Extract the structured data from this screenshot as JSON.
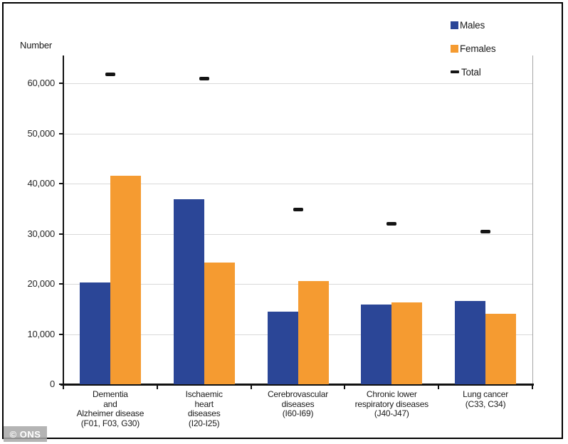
{
  "watermark": {
    "text": "© ONS"
  },
  "legend": {
    "items": [
      {
        "label": "Males",
        "type": "square",
        "color": "#2B4697"
      },
      {
        "label": "Females",
        "type": "square",
        "color": "#F59B31"
      },
      {
        "label": "Total",
        "type": "dash",
        "color": "#141414"
      }
    ]
  },
  "chart_data": {
    "type": "bar",
    "title": "",
    "y_axis_title": "Number",
    "xlabel": "",
    "ylabel": "Number",
    "ylim": [
      0,
      65500
    ],
    "grid": true,
    "legend_position": "top-right",
    "categories": [
      "Dementia and Alzheimer disease (F01, F03, G30)",
      "Ischaemic heart diseases (I20-I25)",
      "Cerebrovascular diseases (I60-I69)",
      "Chronic lower respiratory diseases (J40-J47)",
      "Lung cancer (C33, C34)"
    ],
    "category_label_lines": [
      [
        "Dementia",
        "and",
        "Alzheimer disease",
        "(F01, F03, G30)"
      ],
      [
        "Ischaemic",
        "heart",
        "diseases",
        "(I20-I25)"
      ],
      [
        "Cerebrovascular",
        "diseases",
        "(I60-I69)"
      ],
      [
        "Chronic lower",
        "respiratory diseases",
        "(J40-J47)"
      ],
      [
        "Lung cancer",
        "(C33, C34)"
      ]
    ],
    "series": [
      {
        "name": "Males",
        "style": "bar",
        "color": "#2B4697",
        "values": [
          20300,
          36900,
          14500,
          15900,
          16600
        ]
      },
      {
        "name": "Females",
        "style": "bar",
        "color": "#F59B31",
        "values": [
          41600,
          24200,
          20500,
          16300,
          14000
        ]
      },
      {
        "name": "Total",
        "style": "dash",
        "color": "#141414",
        "values": [
          61800,
          61000,
          34900,
          32100,
          30500
        ]
      }
    ],
    "y_axis": {
      "ticks": [
        {
          "value": 0,
          "label": "0"
        },
        {
          "value": 10000,
          "label": "10,000"
        },
        {
          "value": 20000,
          "label": "20,000"
        },
        {
          "value": 30000,
          "label": "30,000"
        },
        {
          "value": 40000,
          "label": "40,000"
        },
        {
          "value": 50000,
          "label": "50,000"
        },
        {
          "value": 60000,
          "label": "60,000"
        }
      ]
    }
  }
}
